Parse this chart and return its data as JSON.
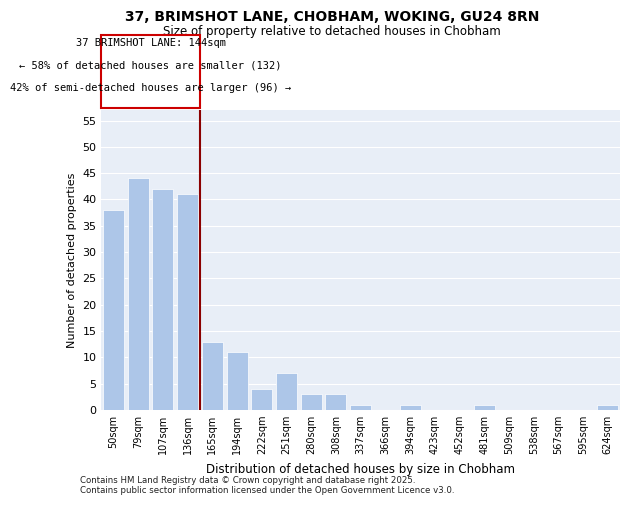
{
  "title_line1": "37, BRIMSHOT LANE, CHOBHAM, WOKING, GU24 8RN",
  "title_line2": "Size of property relative to detached houses in Chobham",
  "xlabel": "Distribution of detached houses by size in Chobham",
  "ylabel": "Number of detached properties",
  "categories": [
    "50sqm",
    "79sqm",
    "107sqm",
    "136sqm",
    "165sqm",
    "194sqm",
    "222sqm",
    "251sqm",
    "280sqm",
    "308sqm",
    "337sqm",
    "366sqm",
    "394sqm",
    "423sqm",
    "452sqm",
    "481sqm",
    "509sqm",
    "538sqm",
    "567sqm",
    "595sqm",
    "624sqm"
  ],
  "values": [
    38,
    44,
    42,
    41,
    13,
    11,
    4,
    7,
    3,
    3,
    1,
    0,
    1,
    0,
    0,
    1,
    0,
    0,
    0,
    0,
    1
  ],
  "bar_color": "#adc6e8",
  "vline_index": 4,
  "vline_color": "#8b0000",
  "ann_line1": "37 BRIMSHOT LANE: 144sqm",
  "ann_line2": "← 58% of detached houses are smaller (132)",
  "ann_line3": "42% of semi-detached houses are larger (96) →",
  "ylim": [
    0,
    57
  ],
  "yticks": [
    0,
    5,
    10,
    15,
    20,
    25,
    30,
    35,
    40,
    45,
    50,
    55
  ],
  "bg_color": "#e8eef7",
  "footer_line1": "Contains HM Land Registry data © Crown copyright and database right 2025.",
  "footer_line2": "Contains public sector information licensed under the Open Government Licence v3.0."
}
